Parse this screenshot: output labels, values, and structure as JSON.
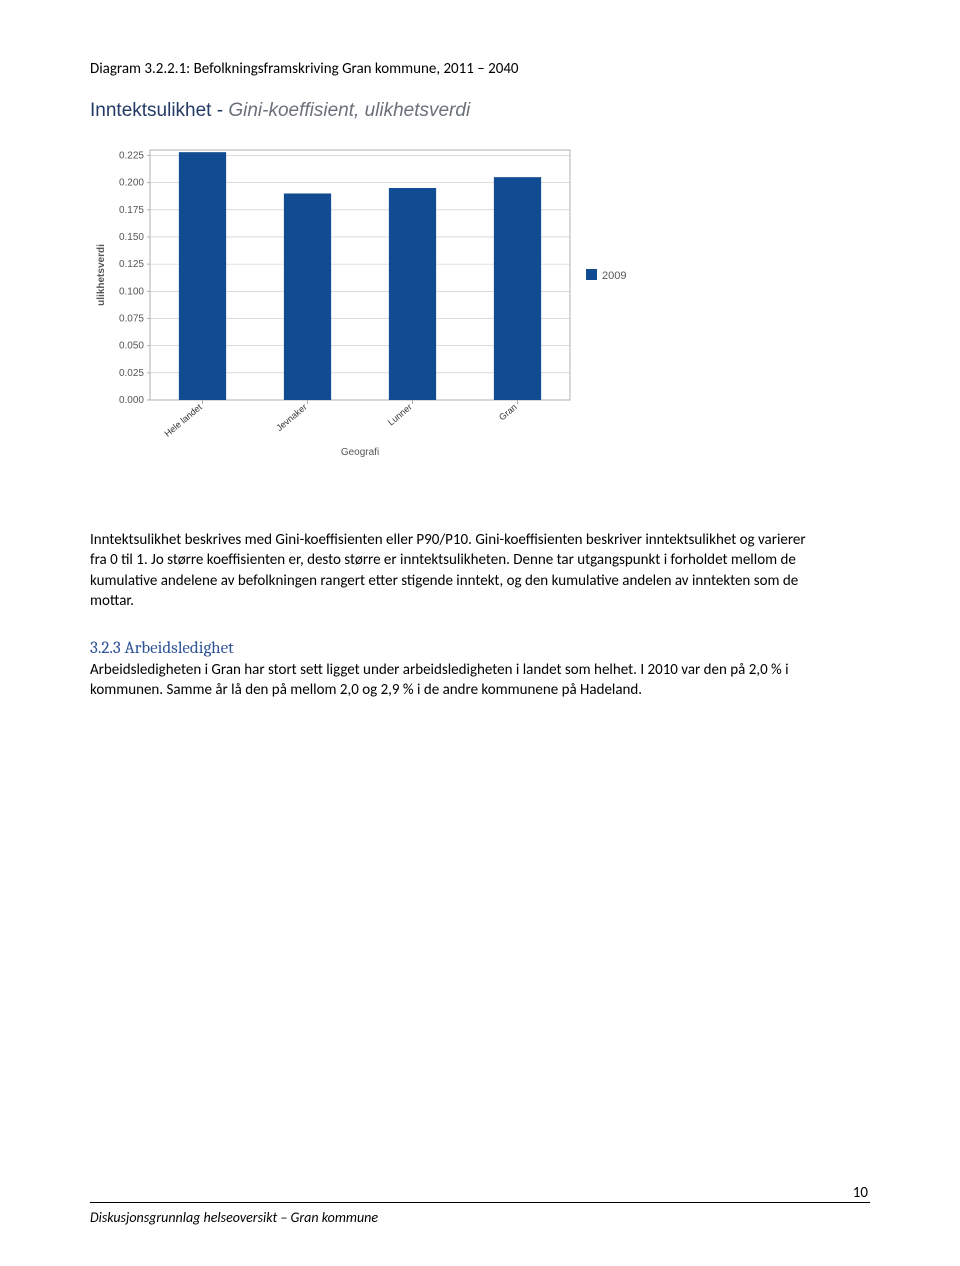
{
  "caption_label": "Diagram 3.2.2.1: Befolkningsframskriving Gran kommune, 2011 – 2040",
  "chart": {
    "type": "bar",
    "title_main": "Inntektsulikhet - ",
    "title_sub": "Gini-koeffisient, ulikhetsverdi",
    "y_axis_title": "ulikhetsverdi",
    "x_axis_title": "Geografi",
    "categories": [
      "Hele landet",
      "Jevnaker",
      "Lunner",
      "Gran"
    ],
    "values": [
      0.228,
      0.19,
      0.195,
      0.205
    ],
    "bar_color": "#114b91",
    "ylim": [
      0.0,
      0.23
    ],
    "yticks": [
      "0.000",
      "0.025",
      "0.050",
      "0.075",
      "0.100",
      "0.125",
      "0.150",
      "0.175",
      "0.200",
      "0.225"
    ],
    "ytick_values": [
      0.0,
      0.025,
      0.05,
      0.075,
      0.1,
      0.125,
      0.15,
      0.175,
      0.2,
      0.225
    ],
    "grid_color": "#c7c7c7",
    "axis_color": "#b0b0b0",
    "tick_font_size": 10,
    "axis_title_font_size": 10,
    "legend_label": "2009",
    "legend_color": "#114b91",
    "bar_width": 0.45,
    "background_color": "#ffffff"
  },
  "para1": "Inntektsulikhet beskrives med Gini-koeffisienten eller P90/P10. Gini-koeffisienten beskriver inntektsulikhet og varierer fra 0 til 1. Jo større koeffisienten er, desto større er inntektsulikheten. Denne tar utgangspunkt i forholdet mellom de kumulative andelene av befolkningen rangert etter stigende inntekt, og den kumulative andelen av inntekten som de mottar.",
  "subhead": "3.2.3 Arbeidsledighet",
  "para2": "Arbeidsledigheten i Gran har stort sett ligget under arbeidsledigheten i landet som helhet. I 2010 var den på 2,0 % i kommunen. Samme år lå den på mellom 2,0 og 2,9 % i de andre kommunene på Hadeland.",
  "footer_text": "Diskusjonsgrunnlag helseoversikt – Gran kommune",
  "page_number": "10"
}
